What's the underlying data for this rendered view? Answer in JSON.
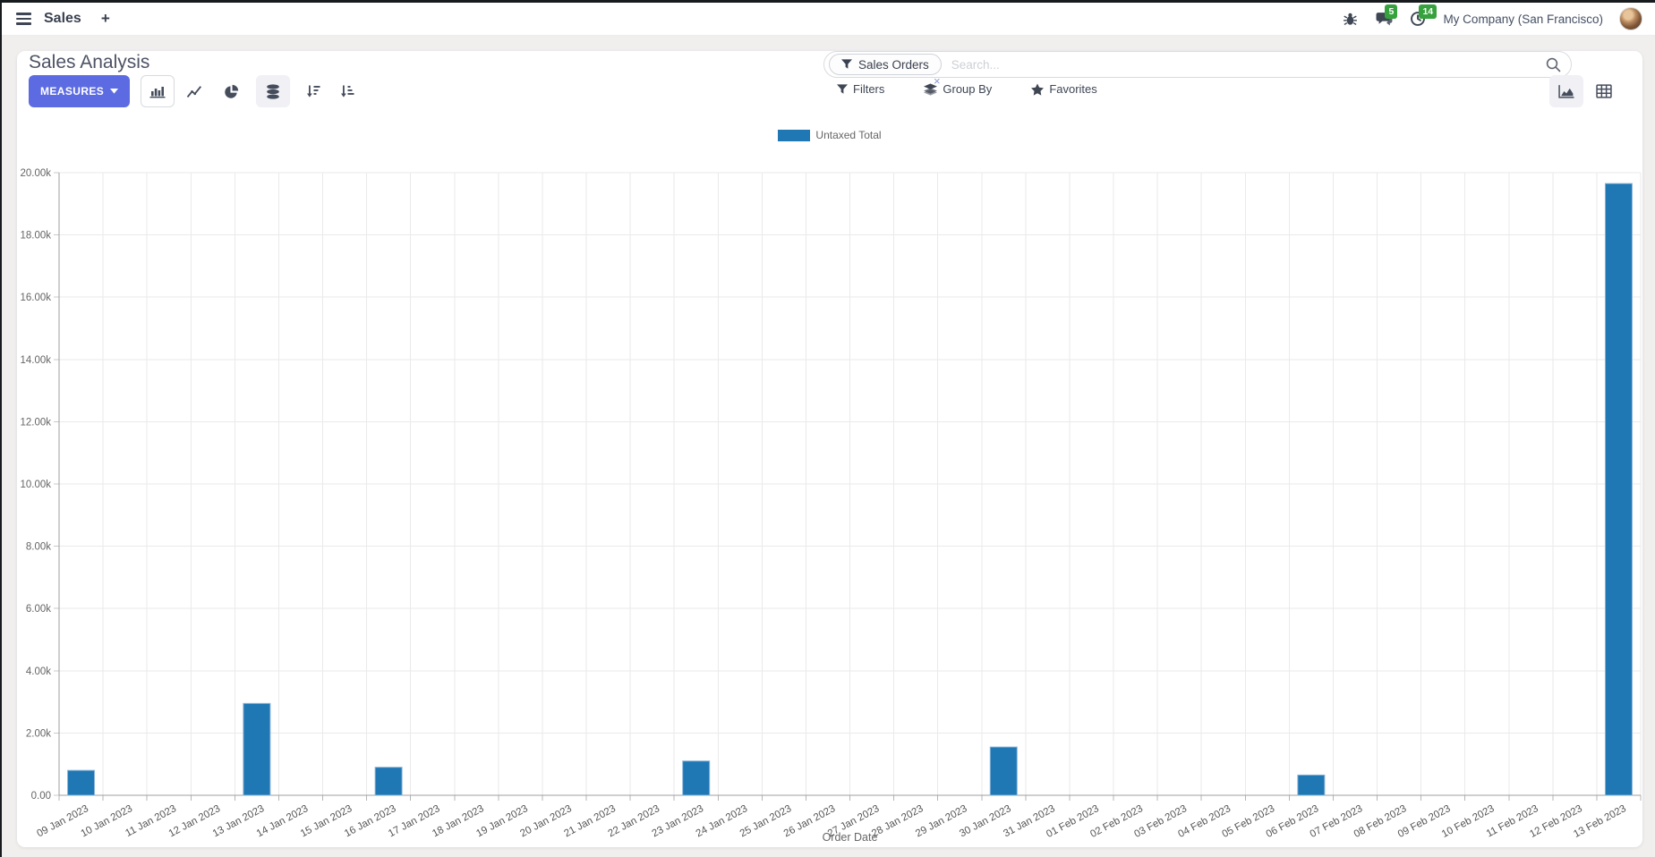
{
  "navbar": {
    "app_name": "Sales",
    "new_tab_label": "+",
    "messages_badge": "5",
    "activities_badge": "14",
    "company": "My Company (San Francisco)"
  },
  "control_panel": {
    "title": "Sales Analysis",
    "measures_label": "MEASURES",
    "search": {
      "facet_label": "Sales Orders",
      "facet_remove": "×",
      "placeholder": "Search..."
    },
    "filters_label": "Filters",
    "group_by_label": "Group By",
    "favorites_label": "Favorites"
  },
  "chart_data": {
    "type": "bar",
    "title": "",
    "xlabel": "Order Date",
    "ylabel": "",
    "ylim": [
      0,
      20000
    ],
    "ytick_step": 2000,
    "ytick_labels": [
      "0.00",
      "2.00k",
      "4.00k",
      "6.00k",
      "8.00k",
      "10.00k",
      "12.00k",
      "14.00k",
      "16.00k",
      "18.00k",
      "20.00k"
    ],
    "grid": true,
    "legend_position": "top",
    "bar_color": "#1f77b4",
    "bar_border_color": "#8ab4d8",
    "categories": [
      "09 Jan 2023",
      "10 Jan 2023",
      "11 Jan 2023",
      "12 Jan 2023",
      "13 Jan 2023",
      "14 Jan 2023",
      "15 Jan 2023",
      "16 Jan 2023",
      "17 Jan 2023",
      "18 Jan 2023",
      "19 Jan 2023",
      "20 Jan 2023",
      "21 Jan 2023",
      "22 Jan 2023",
      "23 Jan 2023",
      "24 Jan 2023",
      "25 Jan 2023",
      "26 Jan 2023",
      "27 Jan 2023",
      "28 Jan 2023",
      "29 Jan 2023",
      "30 Jan 2023",
      "31 Jan 2023",
      "01 Feb 2023",
      "02 Feb 2023",
      "03 Feb 2023",
      "04 Feb 2023",
      "05 Feb 2023",
      "06 Feb 2023",
      "07 Feb 2023",
      "08 Feb 2023",
      "09 Feb 2023",
      "10 Feb 2023",
      "11 Feb 2023",
      "12 Feb 2023",
      "13 Feb 2023"
    ],
    "series": [
      {
        "name": "Untaxed Total",
        "color": "#1f77b4",
        "values": [
          800,
          0,
          0,
          0,
          2950,
          0,
          0,
          900,
          0,
          0,
          0,
          0,
          0,
          0,
          1100,
          0,
          0,
          0,
          0,
          0,
          0,
          1550,
          0,
          0,
          0,
          0,
          0,
          0,
          650,
          0,
          0,
          0,
          0,
          0,
          0,
          19650
        ]
      }
    ]
  },
  "colors": {
    "accent": "#5d6be2",
    "badge_green": "#36a23d",
    "bar_blue": "#1f77b4",
    "navbar_text": "#3e4654"
  }
}
